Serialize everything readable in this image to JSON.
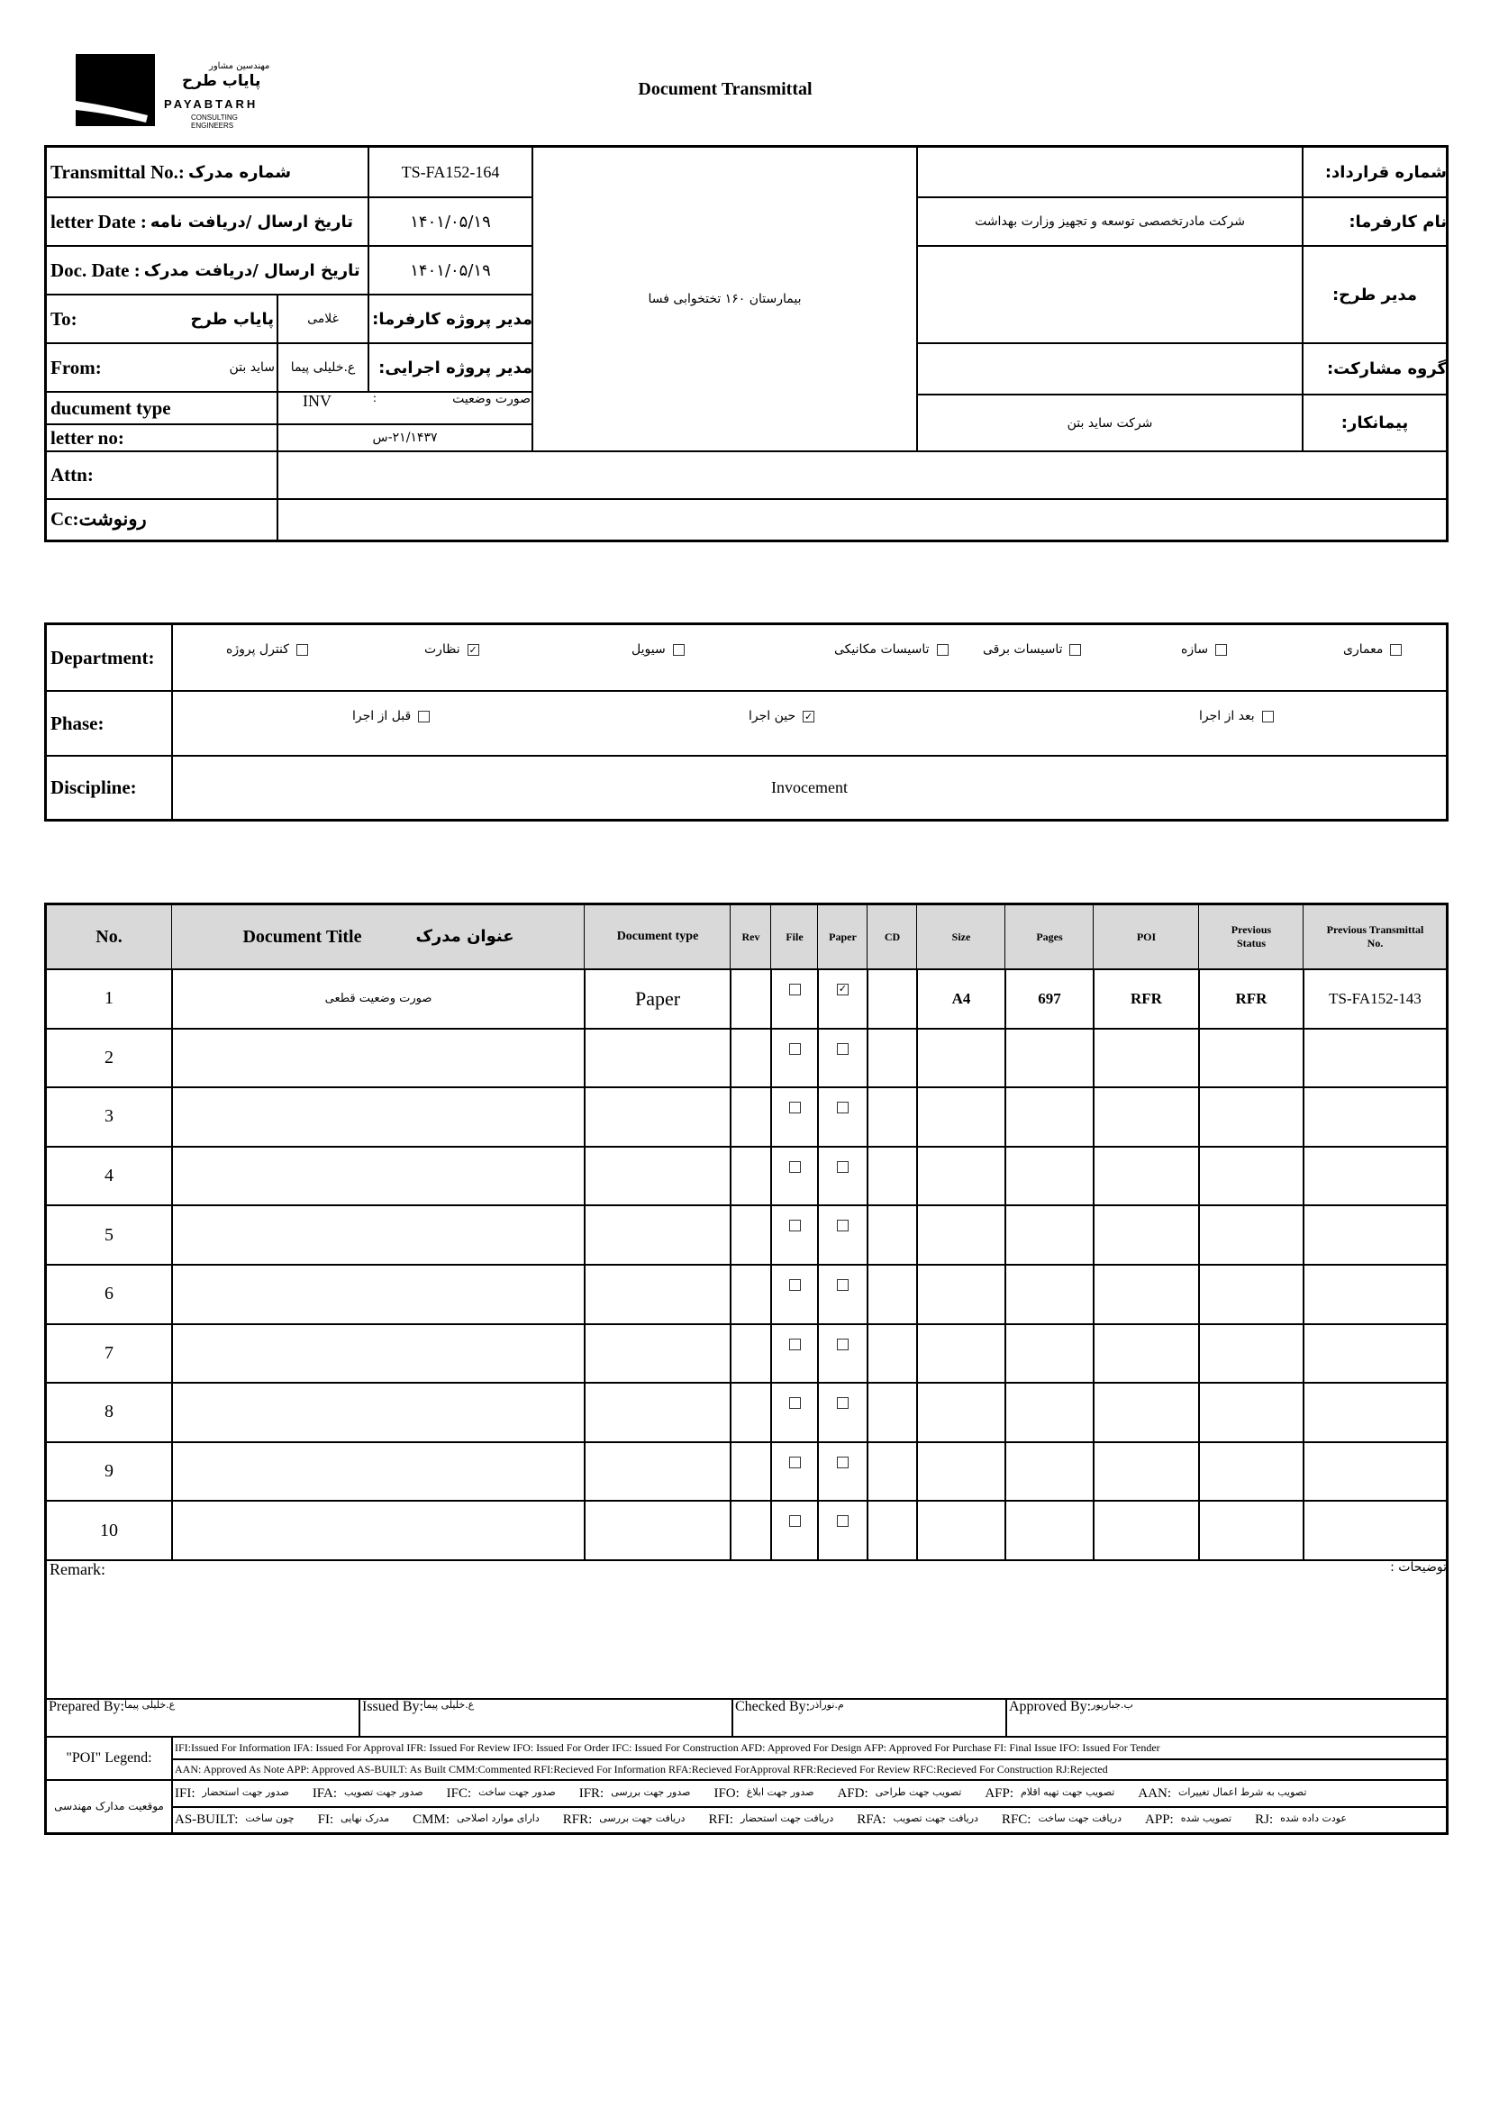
{
  "logo": {
    "fa_top": "مهندسین مشاور",
    "fa_name": "پایاب طرح",
    "name": "PAYABTARH",
    "sub": "CONSULTING ENGINEERS"
  },
  "title": "Document Transmittal",
  "header": {
    "transmittal_label_en": "Transmittal No.:",
    "transmittal_label_fa": "شماره مدرک",
    "transmittal_no": "TS-FA152-164",
    "letter_date_label_en": "letter Date  :",
    "letter_date_label_fa": "تاریخ ارسال /دریافت نامه",
    "letter_date": "۱۴۰۱/۰۵/۱۹",
    "doc_date_label_en": "Doc. Date :",
    "doc_date_label_fa": "تاریخ ارسال /دریافت مدرک",
    "doc_date": "۱۴۰۱/۰۵/۱۹",
    "to_label": "To:",
    "to_value": "پایاب طرح",
    "employer_pm": "غلامی",
    "employer_pm_label": "مدیر پروژه کارفرما:",
    "from_label": "From:",
    "from_value": "ساید بتن",
    "exec_pm": "ع.خلیلی پیما",
    "exec_pm_label": "مدیر پروژه اجرایی:",
    "doc_type_label": "ducument type",
    "doc_type_code": "INV",
    "doc_type_sep": ":",
    "doc_type_fa": "صورت وضعیت",
    "letter_no_label": "letter no:",
    "letter_no": "۲۱/۱۴۳۷-س",
    "attn_label": "Attn:",
    "attn_value": "",
    "cc_label": "Cc:رونوشت",
    "cc_value": "",
    "project": "بیمارستان ۱۶۰ تختخوابی فسا",
    "contract_no_label": "شماره قرارداد:",
    "contract_no": "",
    "employer_label": "نام کارفرما:",
    "employer": "شرکت مادرتخصصی توسعه و تجهیز وزارت بهداشت",
    "plan_manager_label": "مدیر طرح:",
    "plan_manager": "",
    "partnership_label": "گروه مشارکت:",
    "partnership": "",
    "contractor_label": "پیمانکار:",
    "contractor": "شرکت ساید بتن"
  },
  "classification": {
    "department_label": "Department:",
    "departments": [
      {
        "label": "معماری",
        "checked": false
      },
      {
        "label": "سازه",
        "checked": false
      },
      {
        "label": "تاسیسات برقی",
        "checked": false
      },
      {
        "label": "تاسیسات مکانیکی",
        "checked": false
      },
      {
        "label": "سیویل",
        "checked": false
      },
      {
        "label": "نظارت",
        "checked": true
      },
      {
        "label": "کنترل پروژه",
        "checked": false
      }
    ],
    "phase_label": "Phase:",
    "phases": [
      {
        "label": "بعد از اجرا",
        "checked": false
      },
      {
        "label": "حین اجرا",
        "checked": true
      },
      {
        "label": "قبل از اجرا",
        "checked": false
      }
    ],
    "discipline_label": "Discipline:",
    "discipline": "Invocement"
  },
  "documents": {
    "columns": {
      "no": "No.",
      "title_en": "Document Title",
      "title_fa": "عنوان مدرک",
      "type": "Document type",
      "rev": "Rev",
      "file": "File",
      "paper": "Paper",
      "cd": "CD",
      "size": "Size",
      "pages": "Pages",
      "poi": "POI",
      "prev_status": "Previous Status",
      "prev_transmittal": "Previous Transmittal No."
    },
    "rows": [
      {
        "no": "1",
        "title": "صورت وضعیت قطعی",
        "type": "Paper",
        "rev": "",
        "file": false,
        "paper": true,
        "cd": "",
        "size": "A4",
        "pages": "697",
        "poi": "RFR",
        "prev_status": "RFR",
        "prev_transmittal": "TS-FA152-143"
      },
      {
        "no": "2",
        "title": "",
        "type": "",
        "rev": "",
        "file": false,
        "paper": false,
        "cd": "",
        "size": "",
        "pages": "",
        "poi": "",
        "prev_status": "",
        "prev_transmittal": ""
      },
      {
        "no": "3",
        "title": "",
        "type": "",
        "rev": "",
        "file": false,
        "paper": false,
        "cd": "",
        "size": "",
        "pages": "",
        "poi": "",
        "prev_status": "",
        "prev_transmittal": ""
      },
      {
        "no": "4",
        "title": "",
        "type": "",
        "rev": "",
        "file": false,
        "paper": false,
        "cd": "",
        "size": "",
        "pages": "",
        "poi": "",
        "prev_status": "",
        "prev_transmittal": ""
      },
      {
        "no": "5",
        "title": "",
        "type": "",
        "rev": "",
        "file": false,
        "paper": false,
        "cd": "",
        "size": "",
        "pages": "",
        "poi": "",
        "prev_status": "",
        "prev_transmittal": ""
      },
      {
        "no": "6",
        "title": "",
        "type": "",
        "rev": "",
        "file": false,
        "paper": false,
        "cd": "",
        "size": "",
        "pages": "",
        "poi": "",
        "prev_status": "",
        "prev_transmittal": ""
      },
      {
        "no": "7",
        "title": "",
        "type": "",
        "rev": "",
        "file": false,
        "paper": false,
        "cd": "",
        "size": "",
        "pages": "",
        "poi": "",
        "prev_status": "",
        "prev_transmittal": ""
      },
      {
        "no": "8",
        "title": "",
        "type": "",
        "rev": "",
        "file": false,
        "paper": false,
        "cd": "",
        "size": "",
        "pages": "",
        "poi": "",
        "prev_status": "",
        "prev_transmittal": ""
      },
      {
        "no": "9",
        "title": "",
        "type": "",
        "rev": "",
        "file": false,
        "paper": false,
        "cd": "",
        "size": "",
        "pages": "",
        "poi": "",
        "prev_status": "",
        "prev_transmittal": ""
      },
      {
        "no": "10",
        "title": "",
        "type": "",
        "rev": "",
        "file": false,
        "paper": false,
        "cd": "",
        "size": "",
        "pages": "",
        "poi": "",
        "prev_status": "",
        "prev_transmittal": ""
      }
    ]
  },
  "remark": {
    "label_en": "Remark:",
    "label_fa": "توضیحات :"
  },
  "signatures": {
    "prepared_label": "Prepared By:",
    "prepared": "ع.خلیلی پیما",
    "issued_label": "Issued By:",
    "issued": "ع.خلیلی پیما",
    "checked_label": "Checked By:",
    "checked": "م.نورآذر",
    "approved_label": "Approved By:",
    "approved": "ب.جبارپور"
  },
  "legend": {
    "poi_label": "\"POI\" Legend:",
    "line1": "IFI:Issued For Information  IFA: Issued For Approval  IFR: Issued For Review   IFO: Issued For Order  IFC: Issued For Construction AFD: Approved For Design AFP: Approved For Purchase  FI: Final Issue  IFO: Issued For Tender",
    "line2": "AAN: Approved As Note  APP: Approved  AS-BUILT: As Built CMM:Commented  RFI:Recieved For Information   RFA:Recieved ForApproval   RFR:Recieved For Review  RFC:Recieved For Construction  RJ:Rejected",
    "status_label": "موقعیت مدارک مهندسی",
    "fa_line1": [
      {
        "code": "IFI:",
        "fa": "صدور جهت استحضار"
      },
      {
        "code": "IFA:",
        "fa": "صدور جهت تصویب"
      },
      {
        "code": "IFC:",
        "fa": "صدور جهت ساخت"
      },
      {
        "code": "IFR:",
        "fa": "صدور جهت بررسی"
      },
      {
        "code": "IFO:",
        "fa": "صدور جهت ابلاغ"
      },
      {
        "code": "AFD:",
        "fa": "تصویب جهت طراحی"
      },
      {
        "code": "AFP:",
        "fa": "تصویب جهت تهیه اقلام"
      },
      {
        "code": "AAN:",
        "fa": "تصویب به شرط اعمال تغییرات"
      }
    ],
    "fa_line2": [
      {
        "code": "AS-BUILT:",
        "fa": "چون ساخت"
      },
      {
        "code": "FI:",
        "fa": "مدرک نهایی"
      },
      {
        "code": "CMM:",
        "fa": "دارای موارد اصلاحی"
      },
      {
        "code": "RFR:",
        "fa": "دریافت جهت بررسی"
      },
      {
        "code": "RFI:",
        "fa": "دریافت جهت استحضار"
      },
      {
        "code": "RFA:",
        "fa": "دریافت جهت تصویب"
      },
      {
        "code": "RFC:",
        "fa": "دریافت جهت ساخت"
      },
      {
        "code": "APP:",
        "fa": "تصویب شده"
      },
      {
        "code": "RJ:",
        "fa": "عودت داده شده"
      }
    ]
  }
}
